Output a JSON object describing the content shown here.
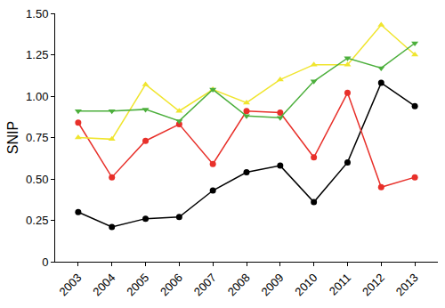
{
  "chart_data": {
    "type": "line",
    "y_label": "SNIP",
    "categories": [
      "2003",
      "2004",
      "2005",
      "2006",
      "2007",
      "2008",
      "2009",
      "2010",
      "2011",
      "2012",
      "2013"
    ],
    "series": [
      {
        "color": "#000000",
        "marker": "circle",
        "values": [
          0.3,
          0.21,
          0.26,
          0.27,
          0.43,
          0.54,
          0.58,
          0.36,
          0.6,
          1.08,
          0.94
        ]
      },
      {
        "color": "#e8302a",
        "marker": "circle",
        "values": [
          0.84,
          0.51,
          0.73,
          0.83,
          0.59,
          0.91,
          0.9,
          0.63,
          1.02,
          0.45,
          0.51
        ]
      },
      {
        "color": "#f0e52e",
        "marker": "triangle-up",
        "values": [
          0.75,
          0.74,
          1.07,
          0.91,
          1.04,
          0.96,
          1.1,
          1.19,
          1.19,
          1.43,
          1.25
        ]
      },
      {
        "color": "#4caf3c",
        "marker": "triangle-down",
        "values": [
          0.91,
          0.91,
          0.92,
          0.85,
          1.04,
          0.88,
          0.87,
          1.09,
          1.23,
          1.17,
          1.32
        ]
      }
    ],
    "ylim": [
      0,
      1.5
    ],
    "yticks": [
      0,
      0.25,
      {
        "value": 0.5,
        "label": "0.50"
      },
      0.75,
      {
        "value": 1,
        "label": "1.00"
      },
      1.25,
      {
        "value": 1.5,
        "label": "1.50"
      }
    ],
    "grid": false
  }
}
